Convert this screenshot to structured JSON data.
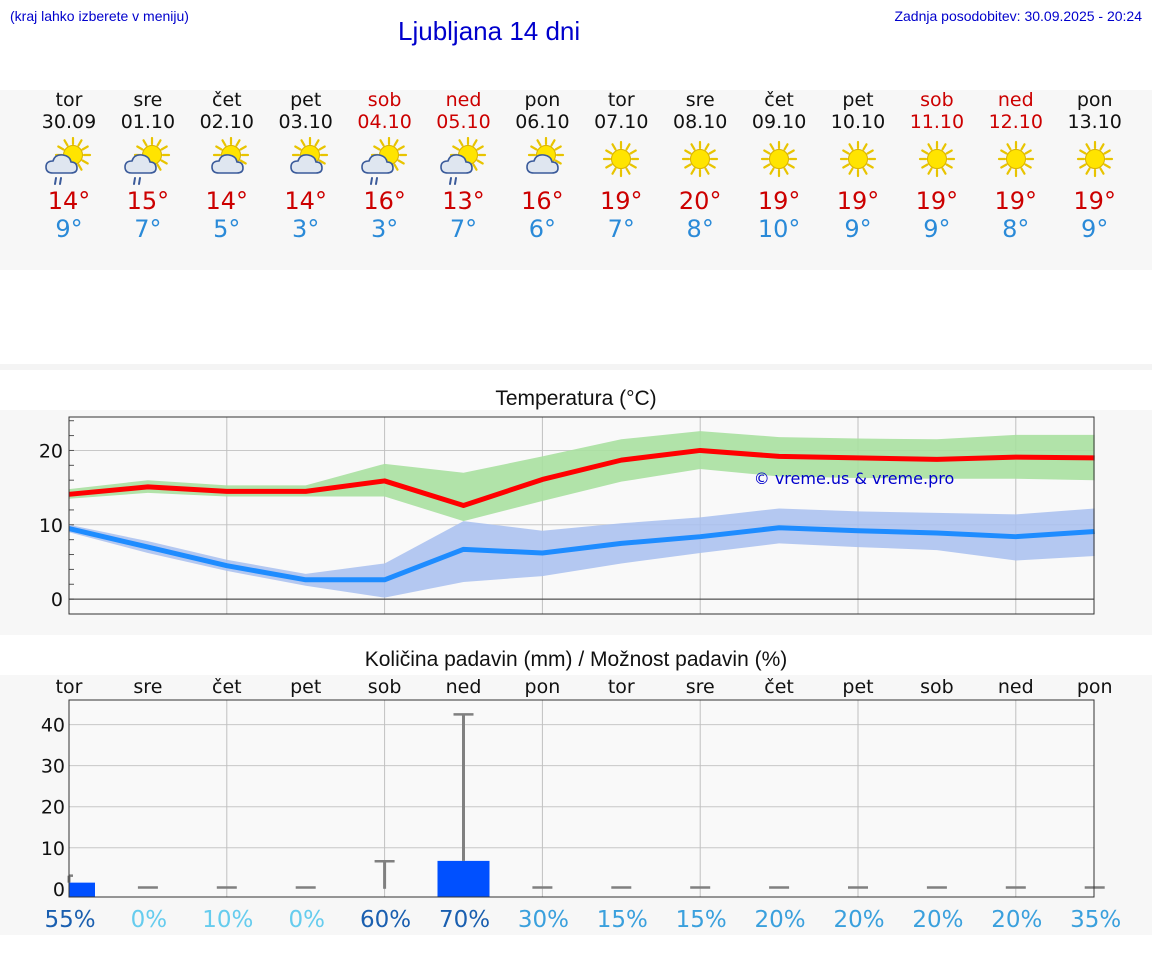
{
  "header": {
    "left_note": "(kraj lahko izberete v meniju)",
    "title": "Ljubljana 14 dni",
    "updated": "Zadnja posodobitev: 30.09.2025 - 20:24"
  },
  "colors": {
    "link_blue": "#0000cc",
    "max_temp": "#cc0000",
    "min_temp": "#2a8ad8",
    "max_band": "#a8e0a0",
    "min_band": "#a8c0f0",
    "max_line": "#ff0000",
    "min_line": "#1e8cff",
    "bar": "#0050ff",
    "whisker": "#808080"
  },
  "days": [
    {
      "name": "tor",
      "date": "30.09",
      "weekend": false,
      "icon": "sun-cloud-rain-icon",
      "max": "14°",
      "min": "9°"
    },
    {
      "name": "sre",
      "date": "01.10",
      "weekend": false,
      "icon": "sun-cloud-rain-icon",
      "max": "15°",
      "min": "7°"
    },
    {
      "name": "čet",
      "date": "02.10",
      "weekend": false,
      "icon": "sun-cloud-icon",
      "max": "14°",
      "min": "5°"
    },
    {
      "name": "pet",
      "date": "03.10",
      "weekend": false,
      "icon": "sun-cloud-icon",
      "max": "14°",
      "min": "3°"
    },
    {
      "name": "sob",
      "date": "04.10",
      "weekend": true,
      "icon": "sun-cloud-rain-icon",
      "max": "16°",
      "min": "3°"
    },
    {
      "name": "ned",
      "date": "05.10",
      "weekend": true,
      "icon": "sun-cloud-rain-icon",
      "max": "13°",
      "min": "7°"
    },
    {
      "name": "pon",
      "date": "06.10",
      "weekend": false,
      "icon": "sun-cloud-icon",
      "max": "16°",
      "min": "6°"
    },
    {
      "name": "tor",
      "date": "07.10",
      "weekend": false,
      "icon": "sun-icon",
      "max": "19°",
      "min": "7°"
    },
    {
      "name": "sre",
      "date": "08.10",
      "weekend": false,
      "icon": "sun-icon",
      "max": "20°",
      "min": "8°"
    },
    {
      "name": "čet",
      "date": "09.10",
      "weekend": false,
      "icon": "sun-icon",
      "max": "19°",
      "min": "10°"
    },
    {
      "name": "pet",
      "date": "10.10",
      "weekend": false,
      "icon": "sun-icon",
      "max": "19°",
      "min": "9°"
    },
    {
      "name": "sob",
      "date": "11.10",
      "weekend": true,
      "icon": "sun-icon",
      "max": "19°",
      "min": "9°"
    },
    {
      "name": "ned",
      "date": "12.10",
      "weekend": true,
      "icon": "sun-icon",
      "max": "19°",
      "min": "8°"
    },
    {
      "name": "pon",
      "date": "13.10",
      "weekend": false,
      "icon": "sun-icon",
      "max": "19°",
      "min": "9°"
    }
  ],
  "chart_data": [
    {
      "type": "line",
      "title": "Temperatura (°C)",
      "xlabel": "",
      "ylabel": "",
      "ylim": [
        -2,
        24.5
      ],
      "yticks": [
        0,
        10,
        20
      ],
      "watermark": "© vreme.us & vreme.pro",
      "x": [
        0,
        1,
        2,
        3,
        4,
        5,
        6,
        7,
        8,
        9,
        10,
        11,
        12,
        13
      ],
      "series": [
        {
          "name": "max",
          "values": [
            14.1,
            15.1,
            14.5,
            14.5,
            15.9,
            12.6,
            16.1,
            18.7,
            20.0,
            19.2,
            19.0,
            18.8,
            19.1,
            19.0
          ],
          "band_low": [
            13.5,
            14.3,
            13.8,
            13.8,
            13.8,
            10.5,
            13.2,
            15.8,
            17.5,
            16.5,
            16.3,
            16.2,
            16.2,
            16.0
          ],
          "band_high": [
            14.8,
            16.0,
            15.3,
            15.3,
            18.2,
            17.0,
            19.2,
            21.5,
            22.6,
            21.8,
            21.6,
            21.5,
            22.1,
            22.1
          ]
        },
        {
          "name": "min",
          "values": [
            9.5,
            7.0,
            4.5,
            2.6,
            2.6,
            6.7,
            6.2,
            7.5,
            8.4,
            9.6,
            9.2,
            8.9,
            8.4,
            9.1
          ],
          "band_low": [
            9.0,
            6.2,
            3.8,
            1.8,
            0.2,
            2.3,
            3.1,
            4.8,
            6.2,
            7.5,
            7.0,
            6.6,
            5.2,
            5.8
          ],
          "band_high": [
            10.0,
            7.8,
            5.3,
            3.4,
            4.8,
            10.5,
            9.2,
            10.2,
            11.0,
            12.2,
            11.8,
            11.6,
            11.4,
            12.2
          ]
        }
      ]
    },
    {
      "type": "bar",
      "title": "Količina padavin (mm) / Možnost padavin (%)",
      "ylim": [
        -2,
        46
      ],
      "yticks": [
        0,
        10,
        20,
        30,
        40
      ],
      "categories": [
        "tor",
        "sre",
        "čet",
        "pet",
        "sob",
        "ned",
        "pon",
        "tor",
        "sre",
        "čet",
        "pet",
        "sob",
        "ned",
        "pon"
      ],
      "values": [
        1.5,
        0,
        0,
        0,
        0,
        6.8,
        0,
        0,
        0,
        0,
        0,
        0,
        0,
        0
      ],
      "whisker_max": [
        3.2,
        0.2,
        0,
        0,
        6.7,
        42.5,
        0,
        0,
        0,
        0,
        0,
        0,
        0,
        0
      ],
      "probability": [
        "55%",
        "0%",
        "10%",
        "0%",
        "60%",
        "70%",
        "30%",
        "15%",
        "15%",
        "20%",
        "20%",
        "20%",
        "20%",
        "35%"
      ],
      "probability_values": [
        55,
        0,
        10,
        0,
        60,
        70,
        30,
        15,
        15,
        20,
        20,
        20,
        20,
        35
      ]
    }
  ]
}
